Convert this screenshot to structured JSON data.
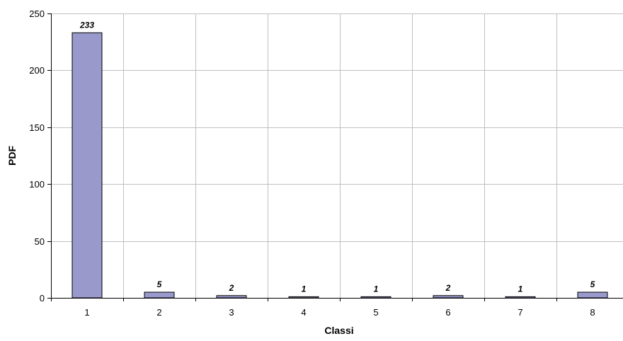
{
  "chart_data": {
    "type": "bar",
    "title": "",
    "xlabel": "Classi",
    "ylabel": "PDF",
    "categories": [
      "1",
      "2",
      "3",
      "4",
      "5",
      "6",
      "7",
      "8"
    ],
    "values": [
      233,
      5,
      2,
      1,
      1,
      2,
      1,
      5
    ],
    "data_labels": [
      "233",
      "5",
      "2",
      "1",
      "1",
      "2",
      "1",
      "5"
    ],
    "ylim": [
      0,
      250
    ],
    "y_ticks": [
      0,
      50,
      100,
      150,
      200,
      250
    ],
    "grid": "both",
    "legend": "none",
    "colors": {
      "bar_fill": "#9999cc",
      "bar_stroke": "#000000",
      "grid": "#c0c0c0",
      "axis": "#000000"
    }
  }
}
